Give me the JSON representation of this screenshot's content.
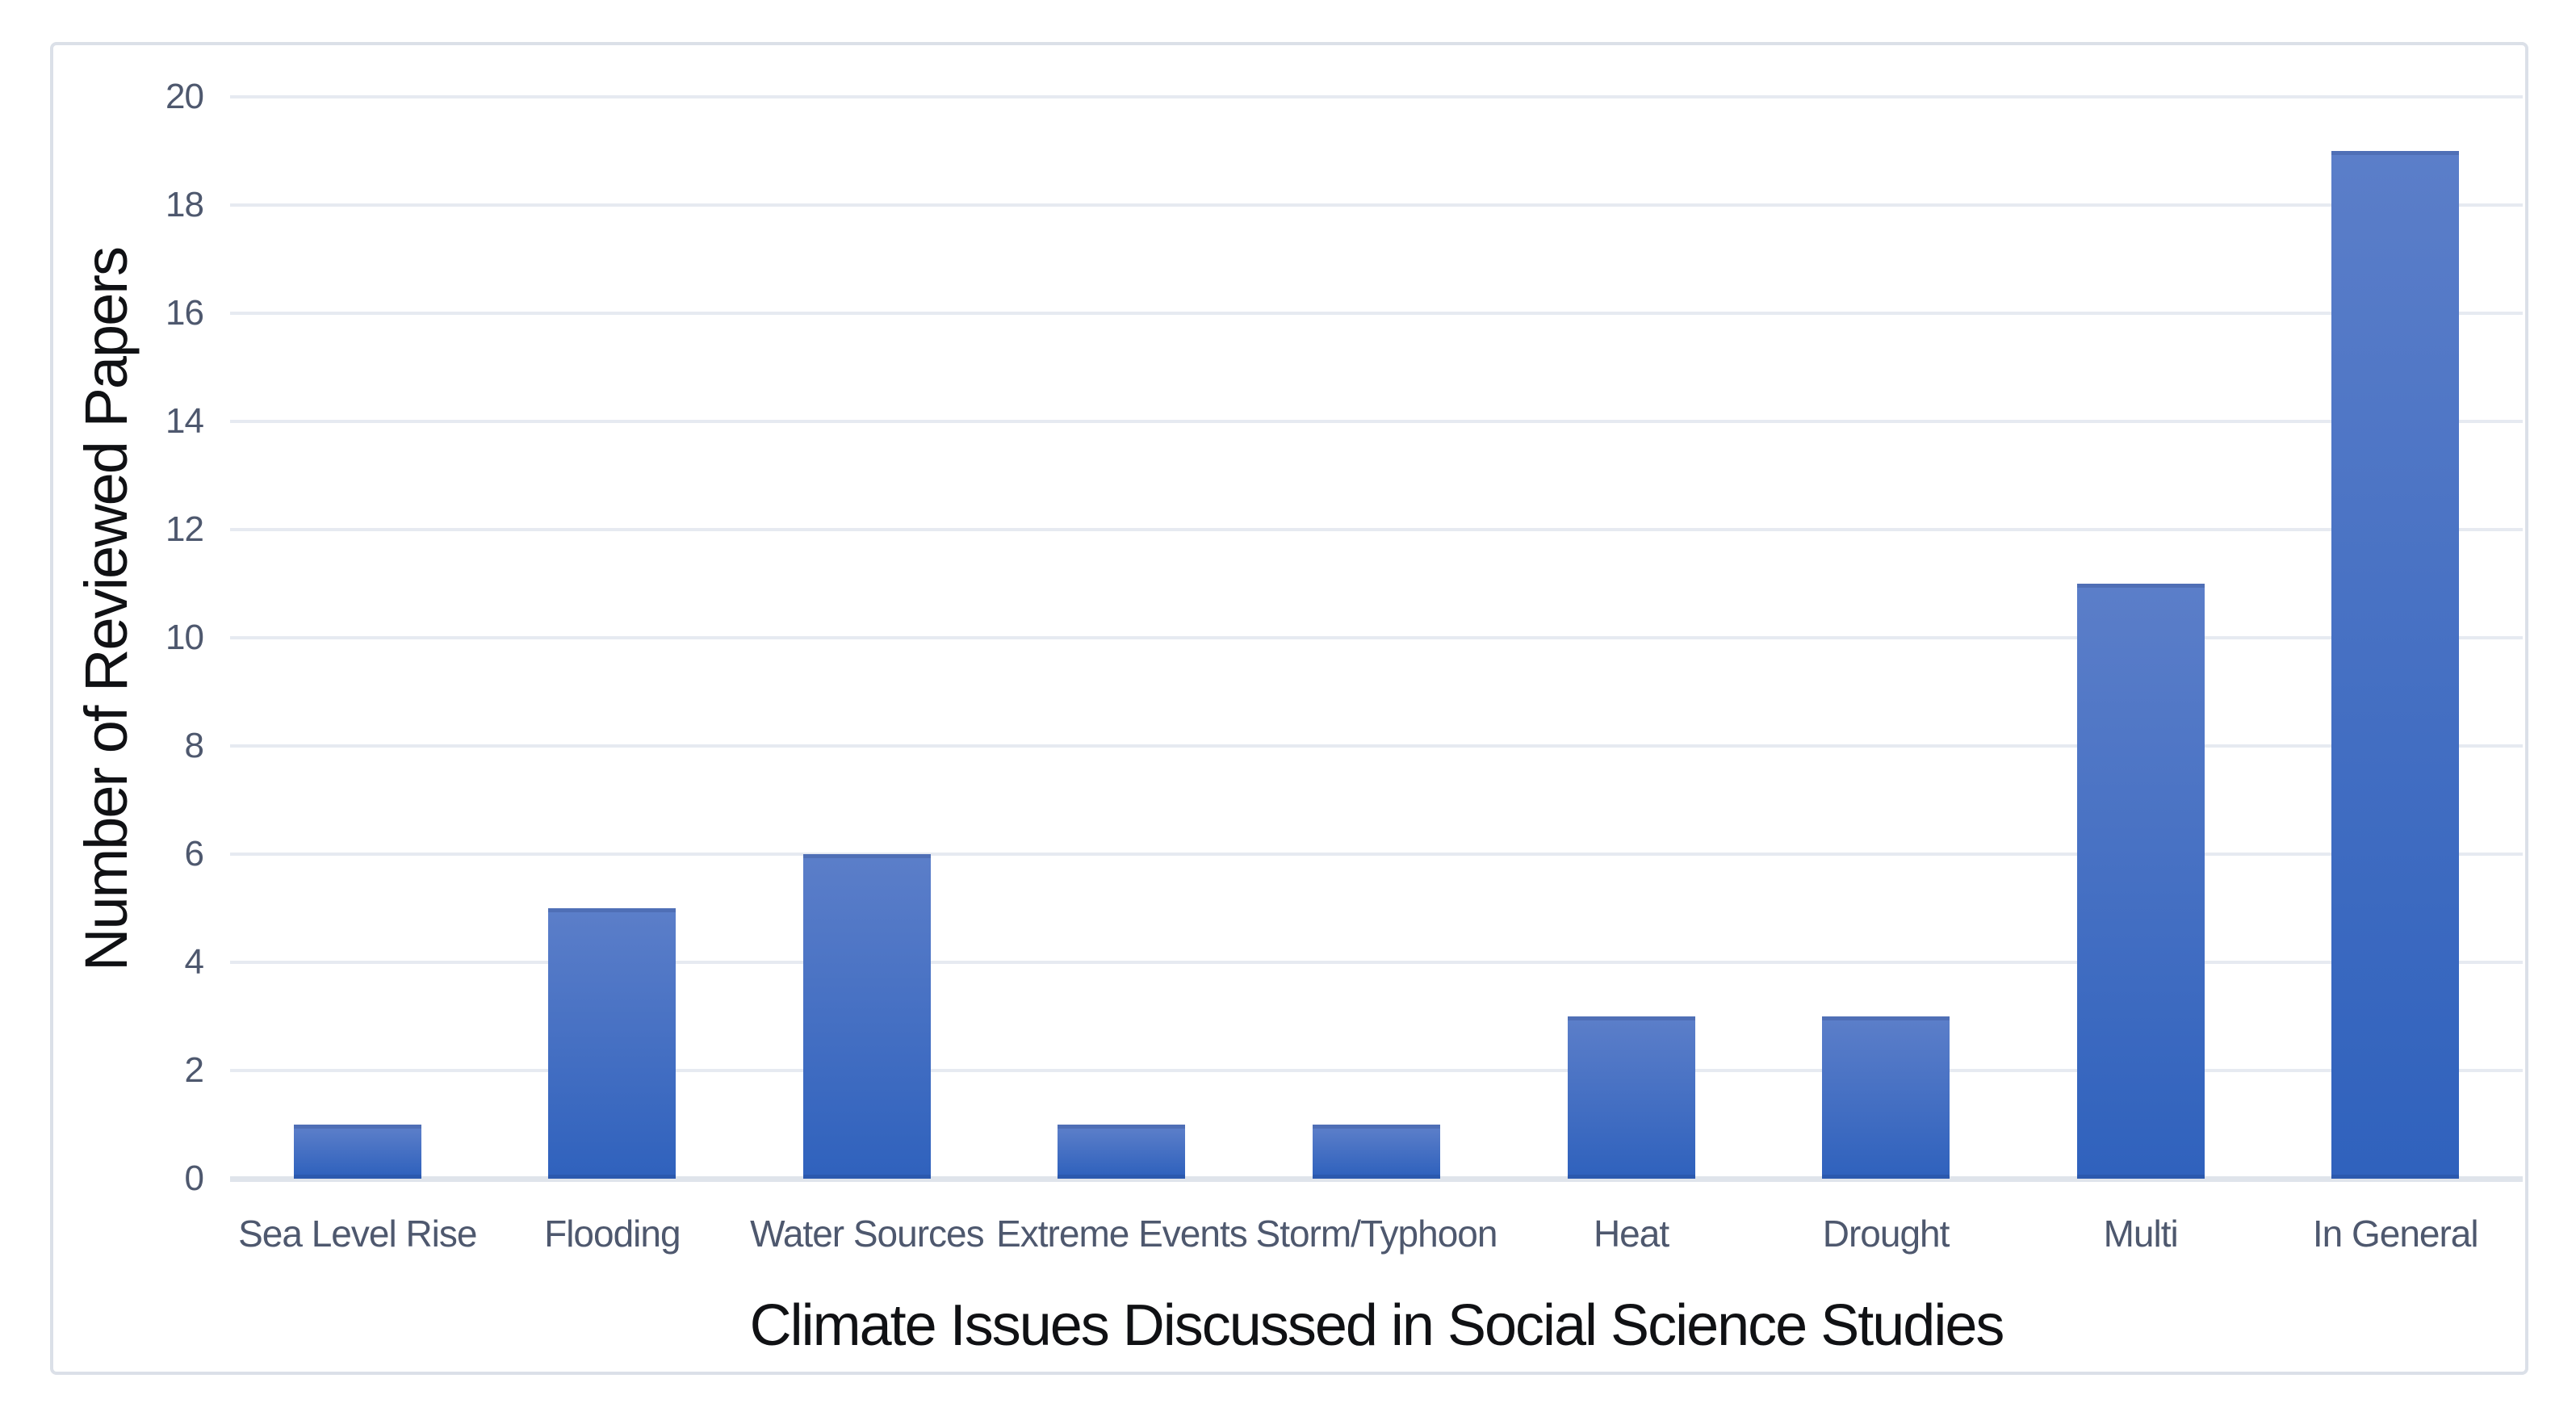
{
  "chart_data": {
    "type": "bar",
    "title": "",
    "categories": [
      "Sea Level Rise",
      "Flooding",
      "Water Sources",
      "Extreme Events",
      "Storm/Typhoon",
      "Heat",
      "Drought",
      "Multi",
      "In General"
    ],
    "values": [
      1,
      5,
      6,
      1,
      1,
      3,
      3,
      11,
      19
    ],
    "xlabel": "Climate Issues Discussed in Social Science Studies",
    "ylabel": "Number of Reviewed Papers",
    "ylim": [
      0,
      20
    ],
    "ytick_step": 2,
    "ytick_labels": [
      "0",
      "2",
      "4",
      "6",
      "8",
      "10",
      "12",
      "14",
      "16",
      "18",
      "20"
    ],
    "grid": true,
    "legend_position": "none",
    "colors": {
      "bar_gradient_top": "#5b7ec9",
      "bar_gradient_bottom": "#3062bd",
      "bar_top_edge": "#4f6fb6",
      "bar_bottom_edge": "#2b59ae",
      "gridline": "#e6eaf1",
      "axis_line": "#dfe4eb",
      "tick_text": "#4e586e",
      "title_text": "#101114",
      "frame_border": "#dbe0e8",
      "background": "#ffffff"
    }
  }
}
